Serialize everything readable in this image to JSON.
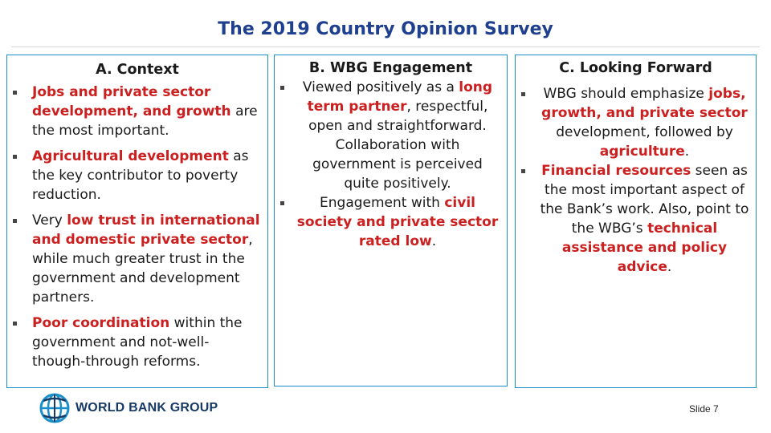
{
  "slide": {
    "title": "The 2019 Country Opinion Survey",
    "slide_number": "Slide 7"
  },
  "logo": {
    "text": "WORLD BANK GROUP",
    "icon": "globe-icon"
  },
  "columns": [
    {
      "heading": "A. Context",
      "bullets": [
        [
          {
            "text": "Jobs and private sector development, and growth",
            "hl": true
          },
          {
            "text": " are the most important.",
            "hl": false
          }
        ],
        [
          {
            "text": "Agricultural development",
            "hl": true
          },
          {
            "text": " as the key contributor to poverty reduction.",
            "hl": false
          }
        ],
        [
          {
            "text": "Very ",
            "hl": false
          },
          {
            "text": "low trust in international and domestic private sector",
            "hl": true
          },
          {
            "text": ", while much greater trust in the government and development partners.",
            "hl": false
          }
        ],
        [
          {
            "text": "Poor coordination",
            "hl": true
          },
          {
            "text": " within the government and not-well-though-through reforms.",
            "hl": false
          }
        ]
      ]
    },
    {
      "heading": "B. WBG Engagement",
      "bullets": [
        [
          {
            "text": "Viewed positively as a ",
            "hl": false
          },
          {
            "text": "long term partner",
            "hl": true
          },
          {
            "text": ", respectful, open and straightforward. Collaboration with government is perceived quite positively.",
            "hl": false
          }
        ],
        [
          {
            "text": "Engagement with ",
            "hl": false
          },
          {
            "text": "civil society and private sector rated low",
            "hl": true
          },
          {
            "text": ".",
            "hl": false
          }
        ]
      ]
    },
    {
      "heading": "C. Looking Forward",
      "bullets": [
        [
          {
            "text": "WBG should emphasize ",
            "hl": false
          },
          {
            "text": "jobs, growth, and private sector",
            "hl": true
          },
          {
            "text": " development, followed by ",
            "hl": false
          },
          {
            "text": "agriculture",
            "hl": true
          },
          {
            "text": ".",
            "hl": false
          }
        ],
        [
          {
            "text": "Financial resources",
            "hl": true
          },
          {
            "text": " seen as the most important aspect of the Bank’s work. Also, point to the WBG’s ",
            "hl": false
          },
          {
            "text": "technical assistance and policy advice",
            "hl": true
          },
          {
            "text": ".",
            "hl": false
          }
        ]
      ]
    }
  ],
  "colors": {
    "title": "#1f3f8f",
    "panel_border": "#1b8fc9",
    "highlight": "#cc1f1f",
    "logo_text": "#173a66"
  }
}
